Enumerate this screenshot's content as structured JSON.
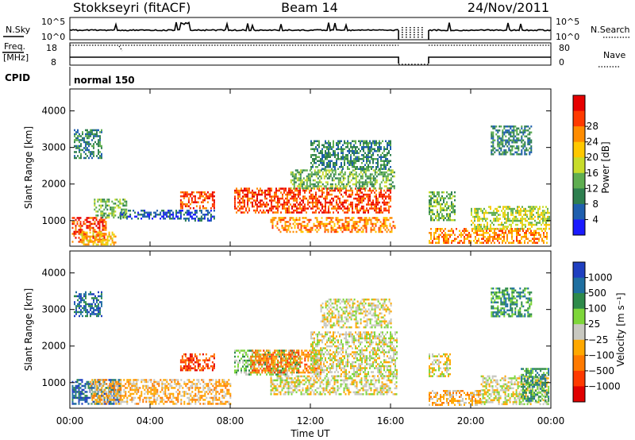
{
  "header": {
    "station": "Stokkseyri (fitACF)",
    "beam": "Beam 14",
    "date": "24/Nov/2011"
  },
  "status_panel": {
    "nsky_label": "N.Sky",
    "nsearch_label": "N.Search",
    "noise_ticks": [
      "10^5",
      "10^0"
    ],
    "freq_label": "Freq.",
    "freq_unit": "[MHz]",
    "freq_ticks": [
      "18",
      "8"
    ],
    "nave_ticks": [
      "80",
      "0"
    ],
    "nave_label": "Nave",
    "cpid_label": "CPID",
    "cpid_value": "normal 150"
  },
  "colors": {
    "power_scale": [
      "#1a1aff",
      "#1f5fae",
      "#2e7f4f",
      "#5fae50",
      "#c8dc2a",
      "#ffc800",
      "#ff8c00",
      "#ff3a00",
      "#e60000"
    ],
    "velocity_scale": [
      "#1f3fc0",
      "#1f6fa0",
      "#2e8a4a",
      "#7ed63a",
      "#c8c8c0",
      "#ffa800",
      "#ff7a00",
      "#ff3a00",
      "#e00000"
    ],
    "ground_scatter": "#c8c8c0"
  },
  "chart_data": [
    {
      "type": "heatmap",
      "name": "power",
      "ylabel": "Slant Range [km]",
      "y_ticks": [
        "1000",
        "2000",
        "3000",
        "4000"
      ],
      "ylim": [
        300,
        4600
      ],
      "xlim": [
        0,
        24
      ],
      "x_ticks": [
        "00:00",
        "04:00",
        "08:00",
        "12:00",
        "16:00",
        "20:00",
        "00:00"
      ],
      "colorbar_label": "Power [dB]",
      "colorbar_ticks": [
        "4",
        "8",
        "12",
        "16",
        "20",
        "24",
        "28"
      ],
      "data_gap_hours": [
        16.4,
        17.9
      ],
      "regions": [
        {
          "t0": 0.1,
          "t1": 1.8,
          "r0": 400,
          "r1": 1100,
          "level": 7
        },
        {
          "t0": 0.5,
          "t1": 2.3,
          "r0": 350,
          "r1": 700,
          "level": 5
        },
        {
          "t0": 1.2,
          "t1": 2.8,
          "r0": 1100,
          "r1": 1600,
          "level": 3
        },
        {
          "t0": 0.2,
          "t1": 1.6,
          "r0": 2700,
          "r1": 3500,
          "level": 2
        },
        {
          "t0": 2.5,
          "t1": 5.5,
          "r0": 1050,
          "r1": 1300,
          "level": 1
        },
        {
          "t0": 5.5,
          "t1": 7.2,
          "r0": 1350,
          "r1": 1800,
          "level": 7
        },
        {
          "t0": 5.5,
          "t1": 7.2,
          "r0": 1000,
          "r1": 1300,
          "level": 1
        },
        {
          "t0": 8.2,
          "t1": 16.0,
          "r0": 1200,
          "r1": 1900,
          "level": 7
        },
        {
          "t0": 10.0,
          "t1": 16.2,
          "r0": 700,
          "r1": 1100,
          "level": 6
        },
        {
          "t0": 11.0,
          "t1": 16.2,
          "r0": 1900,
          "r1": 2400,
          "level": 3
        },
        {
          "t0": 12.0,
          "t1": 16.0,
          "r0": 2400,
          "r1": 3200,
          "level": 2
        },
        {
          "t0": 17.9,
          "t1": 23.8,
          "r0": 400,
          "r1": 800,
          "level": 6
        },
        {
          "t0": 17.9,
          "t1": 19.2,
          "r0": 1000,
          "r1": 1800,
          "level": 3
        },
        {
          "t0": 20.0,
          "t1": 23.9,
          "r0": 800,
          "r1": 1400,
          "level": 4
        },
        {
          "t0": 21.0,
          "t1": 23.0,
          "r0": 2800,
          "r1": 3600,
          "level": 2
        }
      ]
    },
    {
      "type": "heatmap",
      "name": "velocity",
      "ylabel": "Slant Range [km]",
      "y_ticks": [
        "1000",
        "2000",
        "3000",
        "4000"
      ],
      "ylim": [
        300,
        4600
      ],
      "xlim": [
        0,
        24
      ],
      "x_ticks": [
        "00:00",
        "04:00",
        "08:00",
        "12:00",
        "16:00",
        "20:00",
        "00:00"
      ],
      "xlabel": "Time UT",
      "colorbar_label": "Velocity [m s⁻¹]",
      "colorbar_ticks": [
        "1000",
        "500",
        "100",
        "25",
        "−25",
        "−100",
        "−500",
        "−1000"
      ],
      "data_gap_hours": [
        16.4,
        17.9
      ],
      "regions": [
        {
          "t0": 0.1,
          "t1": 2.5,
          "r0": 400,
          "r1": 1100,
          "level": 1
        },
        {
          "t0": 1.0,
          "t1": 8.0,
          "r0": 400,
          "r1": 1100,
          "level": 5
        },
        {
          "t0": 5.5,
          "t1": 7.2,
          "r0": 1350,
          "r1": 1800,
          "level": 7
        },
        {
          "t0": 8.2,
          "t1": 11.5,
          "r0": 1200,
          "r1": 1900,
          "level": 3
        },
        {
          "t0": 9.0,
          "t1": 12.5,
          "r0": 1300,
          "r1": 1900,
          "level": 6
        },
        {
          "t0": 10.0,
          "t1": 16.3,
          "r0": 700,
          "r1": 1200,
          "level": 4
        },
        {
          "t0": 12.0,
          "t1": 16.3,
          "r0": 1200,
          "r1": 2400,
          "level": 4
        },
        {
          "t0": 12.5,
          "t1": 16.0,
          "r0": 2500,
          "r1": 3300,
          "level": 4
        },
        {
          "t0": 17.9,
          "t1": 20.5,
          "r0": 400,
          "r1": 800,
          "level": 5
        },
        {
          "t0": 20.5,
          "t1": 23.9,
          "r0": 400,
          "r1": 1200,
          "level": 4
        },
        {
          "t0": 22.5,
          "t1": 23.9,
          "r0": 500,
          "r1": 1400,
          "level": 2
        },
        {
          "t0": 17.9,
          "t1": 19.0,
          "r0": 1200,
          "r1": 1800,
          "level": 4
        },
        {
          "t0": 21.0,
          "t1": 23.0,
          "r0": 2800,
          "r1": 3600,
          "level": 2
        },
        {
          "t0": 0.2,
          "t1": 1.6,
          "r0": 2800,
          "r1": 3500,
          "level": 1
        }
      ]
    }
  ]
}
